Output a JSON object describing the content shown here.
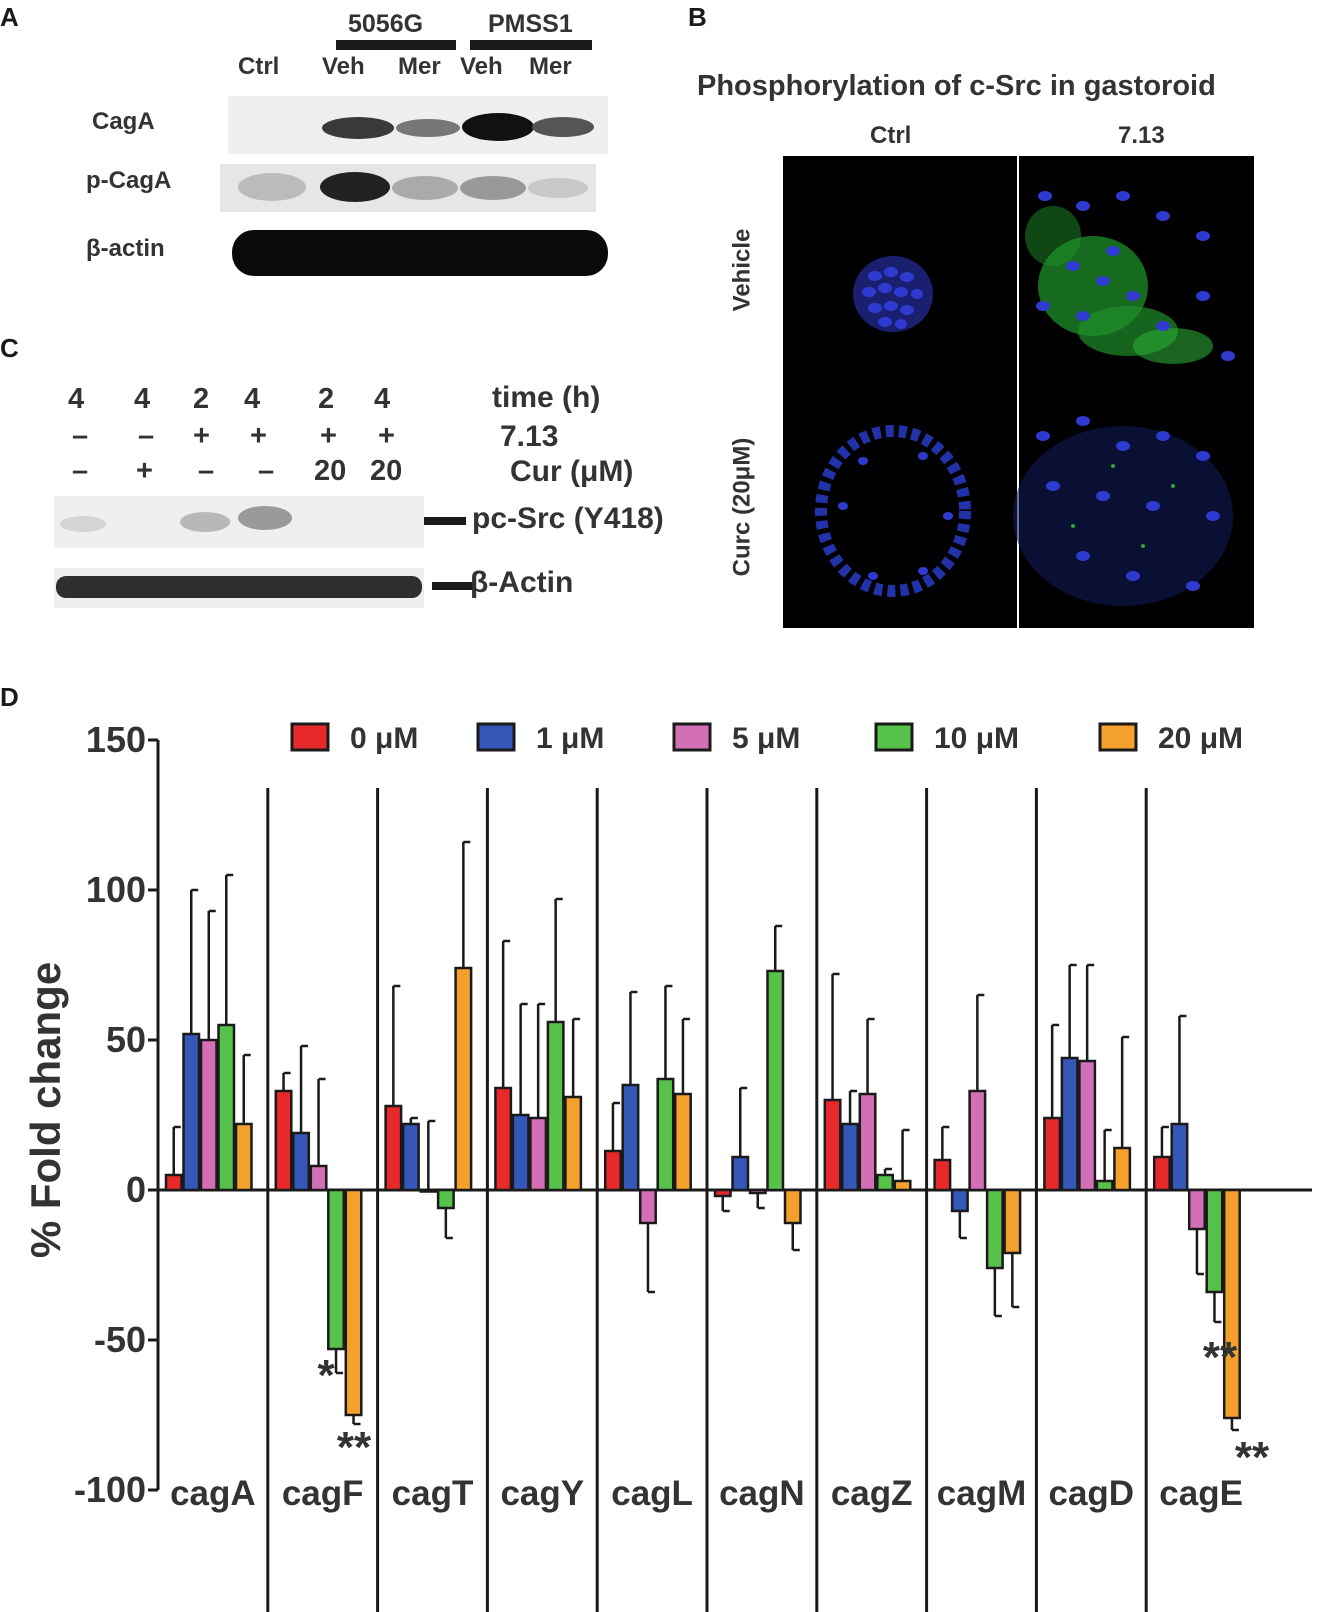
{
  "panels": {
    "a": {
      "letter": "A",
      "group1": "5056G",
      "group2": "PMSS1",
      "lanes": [
        "Ctrl",
        "Veh",
        "Mer",
        "Veh",
        "Mer"
      ],
      "rows": [
        "CagA",
        "p-CagA",
        "β-actin"
      ]
    },
    "b": {
      "letter": "B",
      "title": "Phosphorylation of c-Src in gastoroid",
      "col1": "Ctrl",
      "col2": "7.13",
      "row1": "Vehicle",
      "row2": "Curc (20μM)"
    },
    "c": {
      "letter": "C",
      "time": [
        "4",
        "4",
        "2",
        "4",
        "2",
        "4"
      ],
      "agent": [
        "–",
        "–",
        "+",
        "+",
        "+",
        "+"
      ],
      "cur": [
        "–",
        "+",
        "–",
        "–",
        "20",
        "20"
      ],
      "time_label": "time (h)",
      "agent_label": "7.13",
      "cur_label": "Cur (μM)",
      "band1": "pc-Src (Y418)",
      "band2": "β-Actin"
    },
    "d": {
      "letter": "D"
    }
  },
  "chart_data": {
    "type": "bar",
    "ylabel": "% Fold change",
    "ylim": [
      -100,
      150
    ],
    "yticks": [
      "150",
      "100",
      "50",
      "0",
      "-50",
      "-100"
    ],
    "categories": [
      "cagA",
      "cagF",
      "cagT",
      "cagY",
      "cagL",
      "cagN",
      "cagZ",
      "cagM",
      "cagD",
      "cagE"
    ],
    "series": [
      {
        "name": "0 μM",
        "color": "#e8292b",
        "values": [
          5,
          33,
          28,
          34,
          13,
          -2,
          30,
          10,
          24,
          11
        ],
        "errors": [
          16,
          6,
          40,
          49,
          16,
          5,
          42,
          11,
          31,
          10
        ]
      },
      {
        "name": "1 μM",
        "color": "#3557b7",
        "values": [
          52,
          19,
          22,
          25,
          35,
          11,
          22,
          -7,
          44,
          22
        ],
        "errors": [
          48,
          29,
          2,
          37,
          31,
          23,
          11,
          9,
          31,
          36
        ]
      },
      {
        "name": "5 μM",
        "color": "#d26fb5",
        "values": [
          50,
          8,
          0,
          24,
          -11,
          -1,
          32,
          33,
          43,
          -13
        ],
        "errors": [
          43,
          29,
          23,
          38,
          23,
          5,
          25,
          32,
          32,
          15
        ]
      },
      {
        "name": "10 μM",
        "color": "#56c24a",
        "values": [
          55,
          -53,
          -6,
          56,
          37,
          73,
          5,
          -26,
          3,
          -34
        ],
        "errors": [
          50,
          8,
          10,
          41,
          31,
          15,
          2,
          16,
          17,
          10
        ]
      },
      {
        "name": "20 μM",
        "color": "#f4a02c",
        "values": [
          22,
          -75,
          74,
          31,
          32,
          -11,
          3,
          -21,
          14,
          -76
        ],
        "errors": [
          23,
          3,
          42,
          26,
          25,
          9,
          17,
          18,
          37,
          4
        ]
      }
    ],
    "significance": [
      {
        "category": "cagF",
        "series": "10 μM",
        "text": "*"
      },
      {
        "category": "cagF",
        "series": "20 μM",
        "text": "**"
      },
      {
        "category": "cagE",
        "series": "10 μM",
        "text": "**"
      },
      {
        "category": "cagE",
        "series": "20 μM",
        "text": "**"
      }
    ],
    "legend_position": "top"
  }
}
